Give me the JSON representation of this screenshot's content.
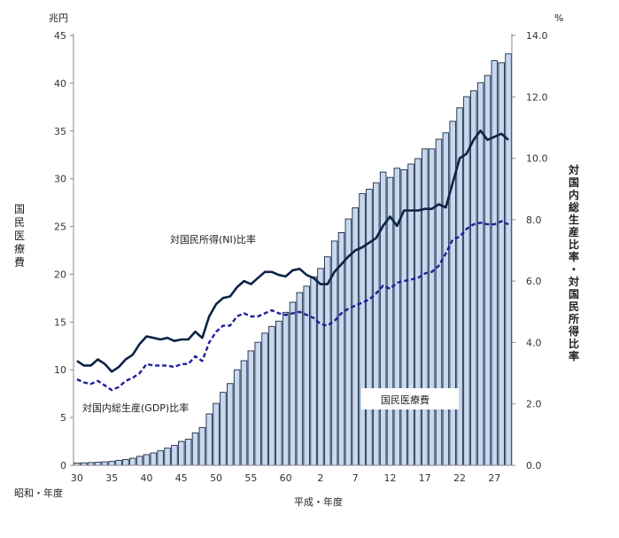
{
  "chart_data": {
    "type": "bar+line",
    "left_unit": "兆円",
    "right_unit": "%",
    "ylabel_left": "国民医療費",
    "ylabel_right": "対国内総生産比率・対国民所得比率",
    "xlabel_showa": "昭和・年度",
    "xlabel_heisei": "平成・年度",
    "ylim_left": [
      0,
      45
    ],
    "ylim_right": [
      0,
      14
    ],
    "left_ticks": [
      "0",
      "5",
      "10",
      "15",
      "20",
      "25",
      "30",
      "35",
      "40",
      "45"
    ],
    "right_ticks": [
      "0.0",
      "2.0",
      "4.0",
      "6.0",
      "8.0",
      "10.0",
      "12.0",
      "14.0"
    ],
    "x_tick_labels": [
      "30",
      "35",
      "40",
      "45",
      "50",
      "55",
      "60",
      "2",
      "7",
      "12",
      "17",
      "22",
      "27"
    ],
    "years": [
      "S30",
      "S31",
      "S32",
      "S33",
      "S34",
      "S35",
      "S36",
      "S37",
      "S38",
      "S39",
      "S40",
      "S41",
      "S42",
      "S43",
      "S44",
      "S45",
      "S46",
      "S47",
      "S48",
      "S49",
      "S50",
      "S51",
      "S52",
      "S53",
      "S54",
      "S55",
      "S56",
      "S57",
      "S58",
      "S59",
      "S60",
      "S61",
      "S62",
      "S63",
      "H1",
      "H2",
      "H3",
      "H4",
      "H5",
      "H6",
      "H7",
      "H8",
      "H9",
      "H10",
      "H11",
      "H12",
      "H13",
      "H14",
      "H15",
      "H16",
      "H17",
      "H18",
      "H19",
      "H20",
      "H21",
      "H22",
      "H23",
      "H24",
      "H25",
      "H26",
      "H27",
      "H28",
      "H29"
    ],
    "series": [
      {
        "name": "国民医療費",
        "type": "bar",
        "axis": "left",
        "color": "#c6d9f1",
        "values": [
          0.24,
          0.26,
          0.29,
          0.32,
          0.36,
          0.41,
          0.52,
          0.61,
          0.74,
          0.94,
          1.12,
          1.3,
          1.52,
          1.8,
          2.08,
          2.5,
          2.73,
          3.4,
          3.96,
          5.38,
          6.48,
          7.64,
          8.56,
          10.0,
          10.95,
          11.98,
          12.88,
          13.84,
          14.54,
          15.09,
          16.02,
          17.07,
          18.08,
          18.75,
          19.73,
          20.61,
          21.83,
          23.48,
          24.36,
          25.79,
          26.96,
          28.45,
          28.91,
          29.58,
          30.7,
          30.14,
          31.1,
          30.95,
          31.54,
          32.11,
          33.13,
          33.13,
          34.14,
          34.81,
          36.01,
          37.42,
          38.59,
          39.21,
          40.06,
          40.81,
          42.36,
          42.14,
          43.07
        ]
      },
      {
        "name": "対国民所得(NI)比率",
        "type": "line",
        "axis": "right",
        "color": "#0d2346",
        "values": [
          3.4,
          3.25,
          3.25,
          3.45,
          3.3,
          3.05,
          3.2,
          3.45,
          3.6,
          3.95,
          4.2,
          4.15,
          4.1,
          4.15,
          4.05,
          4.1,
          4.1,
          4.35,
          4.15,
          4.85,
          5.25,
          5.45,
          5.5,
          5.8,
          6.0,
          5.9,
          6.1,
          6.3,
          6.3,
          6.2,
          6.15,
          6.35,
          6.4,
          6.2,
          6.1,
          5.9,
          5.9,
          6.3,
          6.55,
          6.8,
          7.0,
          7.1,
          7.25,
          7.4,
          7.8,
          8.1,
          7.8,
          8.3,
          8.3,
          8.3,
          8.35,
          8.35,
          8.5,
          8.4,
          9.2,
          10.0,
          10.15,
          10.6,
          10.9,
          10.6,
          10.7,
          10.8,
          10.6
        ]
      },
      {
        "name": "対国内総生産(GDP)比率",
        "type": "line",
        "axis": "right",
        "color": "#1f1f9a",
        "values": [
          2.8,
          2.7,
          2.65,
          2.75,
          2.6,
          2.45,
          2.55,
          2.75,
          2.85,
          3.0,
          3.3,
          3.25,
          3.25,
          3.25,
          3.2,
          3.3,
          3.3,
          3.55,
          3.4,
          4.0,
          4.35,
          4.55,
          4.55,
          4.85,
          4.95,
          4.85,
          4.85,
          4.95,
          5.05,
          4.95,
          4.9,
          4.95,
          5.0,
          4.9,
          4.8,
          4.6,
          4.55,
          4.7,
          4.95,
          5.1,
          5.2,
          5.3,
          5.4,
          5.6,
          5.85,
          5.75,
          5.95,
          6.0,
          6.05,
          6.1,
          6.25,
          6.3,
          6.5,
          6.9,
          7.35,
          7.45,
          7.7,
          7.85,
          7.9,
          7.85,
          7.85,
          7.95,
          7.85
        ]
      }
    ],
    "annotations": {
      "ni": "対国民所得(NI)比率",
      "gdp": "対国内総生産(GDP)比率",
      "bar": "国民医療費"
    },
    "grid": false,
    "legend": "none"
  }
}
